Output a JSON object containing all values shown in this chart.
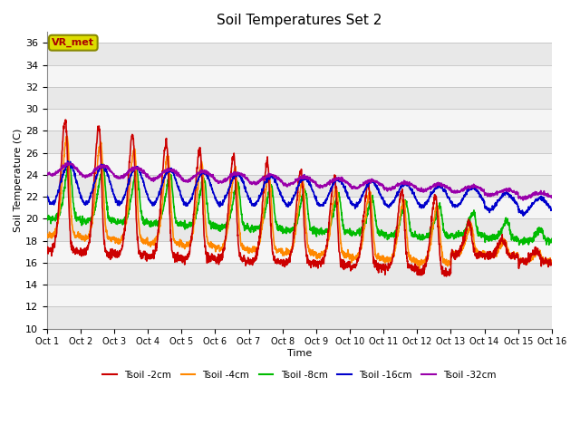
{
  "title": "Soil Temperatures Set 2",
  "xlabel": "Time",
  "ylabel": "Soil Temperature (C)",
  "ylim": [
    10,
    37
  ],
  "yticks": [
    10,
    12,
    14,
    16,
    18,
    20,
    22,
    24,
    26,
    28,
    30,
    32,
    34,
    36
  ],
  "bg_color": "#ffffff",
  "band_colors": [
    "#e8e8e8",
    "#f5f5f5"
  ],
  "grid_color": "#cccccc",
  "annotation_text": "VR_met",
  "annotation_box_facecolor": "#dddd00",
  "annotation_box_edgecolor": "#888800",
  "annotation_text_color": "#aa0000",
  "legend_labels": [
    "Tsoil -2cm",
    "Tsoil -4cm",
    "Tsoil -8cm",
    "Tsoil -16cm",
    "Tsoil -32cm"
  ],
  "line_colors": [
    "#cc0000",
    "#ff8800",
    "#00bb00",
    "#0000cc",
    "#9900aa"
  ],
  "tick_labels": [
    "Oct 1",
    "Oct 2",
    "Oct 3",
    "Oct 4",
    "Oct 5",
    "Oct 6",
    "Oct 7",
    "Oct 8",
    "Oct 9",
    "Oct 10",
    "Oct 11",
    "Oct 12",
    "Oct 13",
    "Oct 14",
    "Oct 15",
    "Oct 16"
  ]
}
